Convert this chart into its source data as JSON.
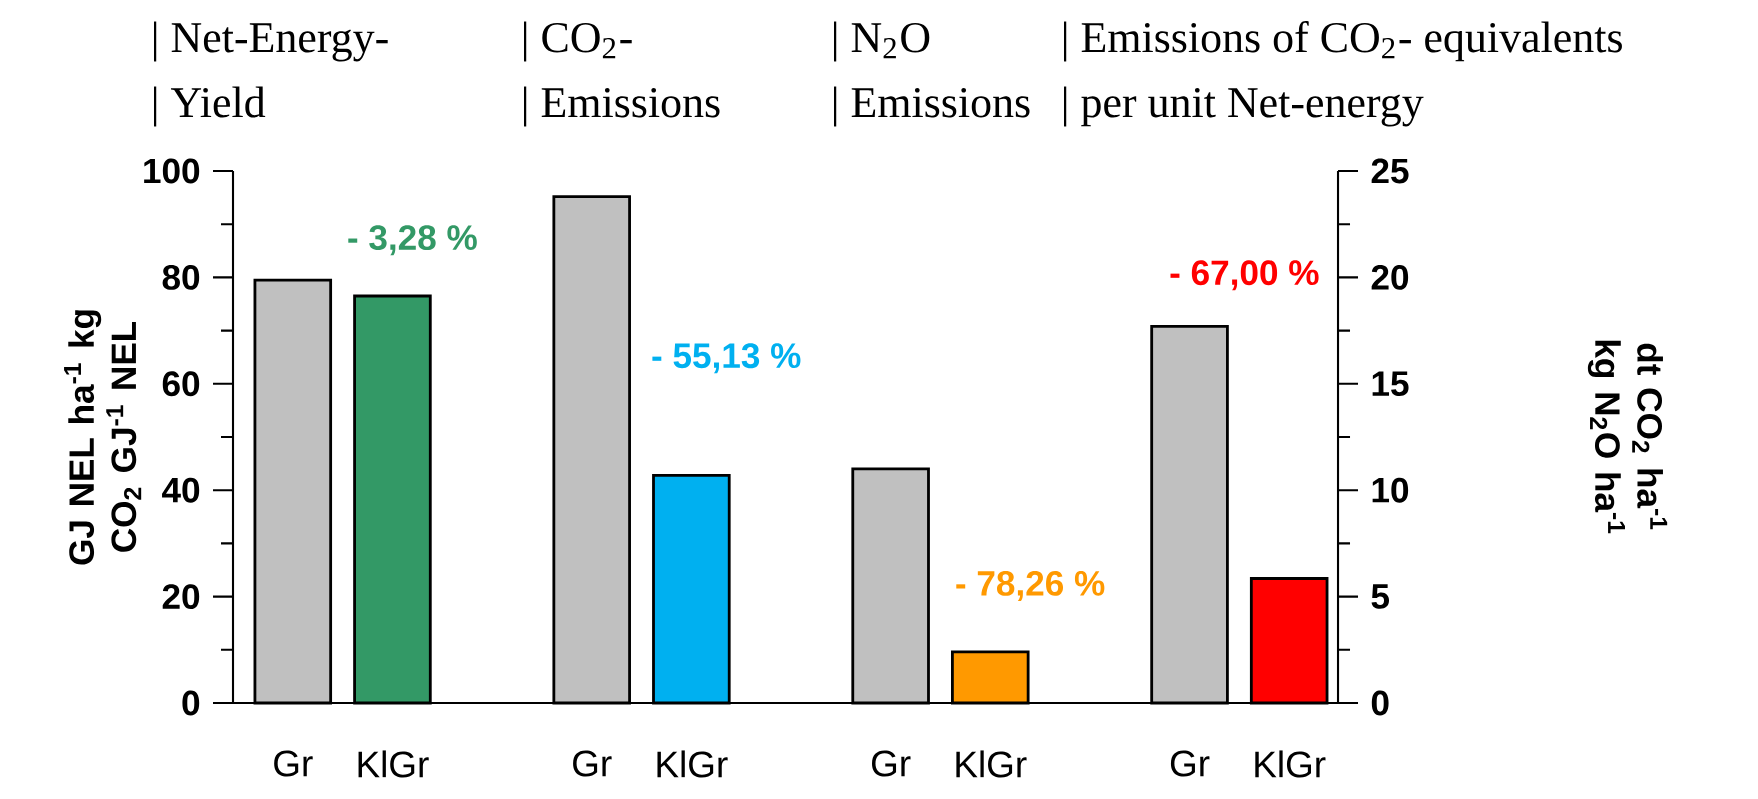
{
  "chart_data": {
    "type": "bar",
    "categories": [
      "Gr",
      "KlGr",
      "Gr",
      "KlGr",
      "Gr",
      "KlGr",
      "Gr",
      "KlGr"
    ],
    "series": [
      {
        "axis": "y",
        "values": [
          79.5,
          76.5,
          null,
          null,
          null,
          null,
          70.8,
          23.4
        ],
        "colors": [
          "#c0c0c0",
          "#339966",
          null,
          null,
          null,
          null,
          "#c0c0c0",
          "#ff0000"
        ]
      },
      {
        "axis": "y2",
        "values": [
          null,
          null,
          23.8,
          10.7,
          11.0,
          2.4,
          null,
          null
        ],
        "colors": [
          null,
          null,
          "#c0c0c0",
          "#00b0f0",
          "#c0c0c0",
          "#ff9900",
          null,
          null
        ]
      }
    ],
    "ylabel": "GJ NEL ha$^{-1}$ kg CO$_{2}$ GJ$^{-1}$ NEL",
    "y2label": "dt CO$_{2}$ ha$^{-1}$ kg N$_{2}$O ha$^{-1}$",
    "ylim": [
      0,
      100
    ],
    "yticks": [
      0,
      20,
      40,
      60,
      80,
      100
    ],
    "y2lim": [
      0,
      25
    ],
    "y2ticks": [
      0,
      5,
      10,
      15,
      20,
      25
    ],
    "annotations": [
      "| Net-Energy-",
      "| CO$_{2}$-",
      "| N$_{2}$O",
      "| Emissions of CO$_{2}$- equivalents",
      "| Yield",
      "| Emissions",
      "| Emissions",
      "| per unit Net-energy",
      "- 3,28 %",
      "- 55,13 %",
      "- 78,26 %",
      "- 67,00 %"
    ]
  }
}
